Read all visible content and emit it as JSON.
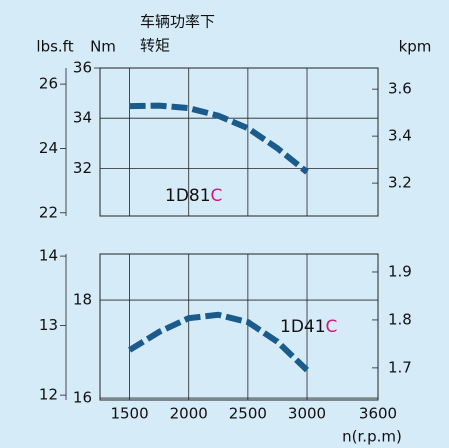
{
  "chart_data": [
    {
      "type": "line",
      "title": [
        "车辆功率下",
        "转矩"
      ],
      "ylabel": "Nm",
      "y2label": "kpm",
      "y3label": "lbs.ft",
      "label": [
        "1D81",
        "C"
      ],
      "x": [
        1500,
        1750,
        2000,
        2250,
        2500,
        2750,
        3000
      ],
      "series": [
        {
          "color": "#1b5b8c",
          "values": [
            34.48,
            34.5,
            34.4,
            34.1,
            33.6,
            32.8,
            31.85
          ]
        }
      ],
      "xlim": [
        1250,
        3600
      ],
      "xticks": [
        1500,
        2000,
        2500,
        3000
      ],
      "ylim": [
        30.1,
        36
      ],
      "yticks": [
        32,
        34,
        36
      ],
      "y2lim": [
        3.06,
        3.69
      ],
      "y2ticks": [
        3.2,
        3.4,
        3.6
      ],
      "y3lim": [
        21.9,
        26.5
      ],
      "y3ticks": [
        22,
        24,
        26
      ],
      "grid": true
    },
    {
      "type": "line",
      "xlabel": "n(r.p.m)",
      "label": [
        "1D41",
        "C"
      ],
      "x": [
        1500,
        1750,
        2000,
        2250,
        2500,
        2750,
        3000
      ],
      "series": [
        {
          "color": "#1b5b8c",
          "values": [
            16.98,
            17.35,
            17.63,
            17.7,
            17.55,
            17.15,
            16.57
          ]
        }
      ],
      "xlim": [
        1250,
        3600
      ],
      "xticks": [
        1500,
        2000,
        2500,
        3000,
        3600
      ],
      "ylim": [
        15.96,
        18.94
      ],
      "yticks": [
        16,
        18
      ],
      "y2lim": [
        1.633,
        1.9375
      ],
      "y2ticks": [
        1.7,
        1.8,
        1.9
      ],
      "y3lim": [
        11.93,
        14.03
      ],
      "y3ticks": [
        12,
        13,
        14
      ],
      "grid": true
    }
  ]
}
